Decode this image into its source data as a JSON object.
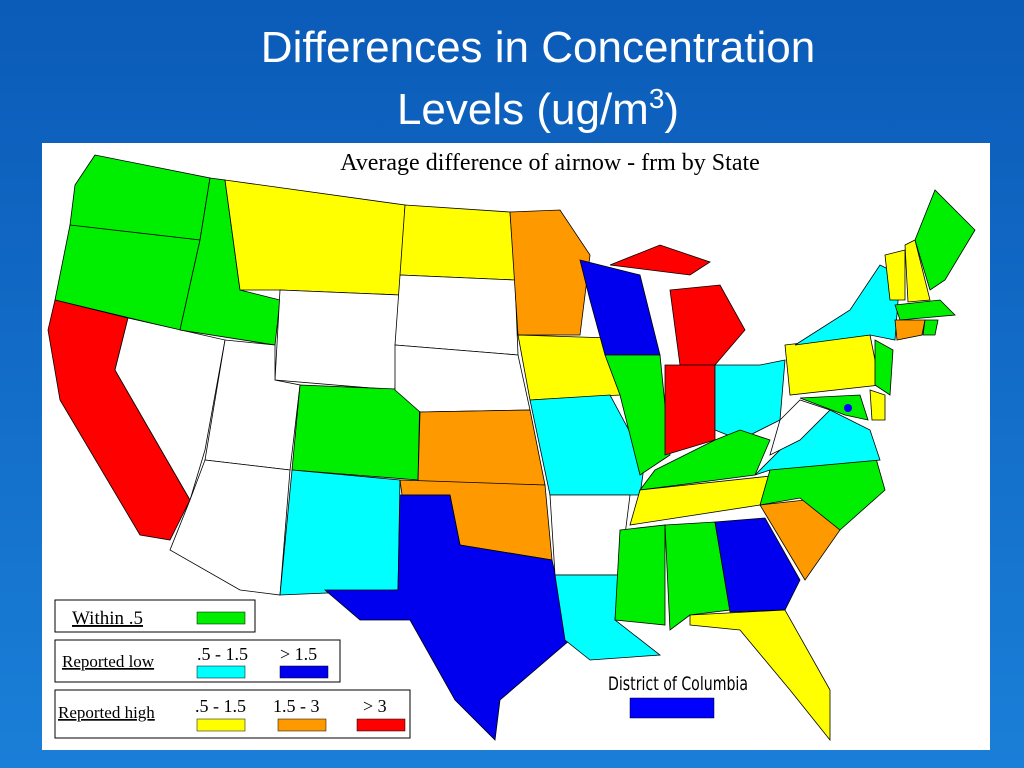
{
  "title": {
    "line1": "Differences in Concentration",
    "line2": "Levels (ug/m",
    "superscript": "3",
    "close": ")"
  },
  "map": {
    "title": "Average difference of airnow - frm by State",
    "legend": {
      "within": {
        "label": "Within .5",
        "color": "#00ee00"
      },
      "reported_low": {
        "label": "Reported low",
        "items": [
          {
            "label": ".5 - 1.5",
            "color": "#00ffff"
          },
          {
            "label": "> 1.5",
            "color": "#0000ee"
          }
        ]
      },
      "reported_high": {
        "label": "Reported high",
        "items": [
          {
            "label": ".5 - 1.5",
            "color": "#ffff00"
          },
          {
            "label": "1.5 - 3",
            "color": "#ff9900"
          },
          {
            "label": "> 3",
            "color": "#ff0000"
          }
        ]
      }
    },
    "dc": {
      "label": "District of Columbia",
      "color": "#0000ff"
    }
  }
}
